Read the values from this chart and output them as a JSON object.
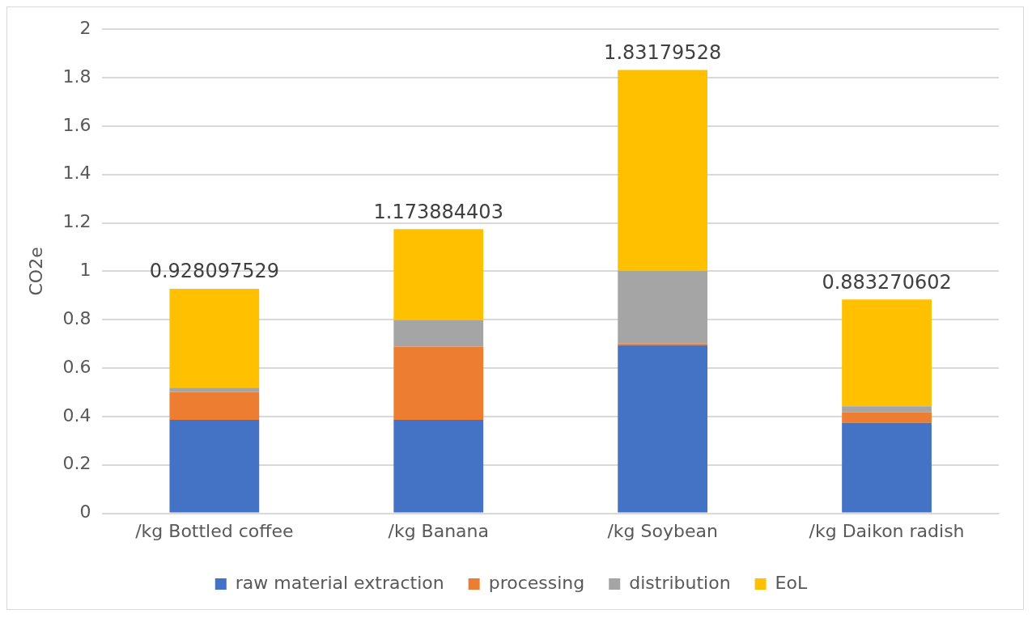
{
  "chart_data": {
    "type": "bar",
    "stacked": true,
    "ylabel": "CO2e",
    "categories": [
      "/kg Bottled coffee",
      "/kg Banana",
      "/kg Soybean",
      "/kg Daikon radish"
    ],
    "series": [
      {
        "name": "raw material extraction",
        "color": "#4472c4",
        "values": [
          0.386,
          0.386,
          0.695,
          0.374
        ]
      },
      {
        "name": "processing",
        "color": "#ed7d31",
        "values": [
          0.116,
          0.303,
          0.007,
          0.044
        ]
      },
      {
        "name": "distribution",
        "color": "#a5a5a5",
        "values": [
          0.017,
          0.109,
          0.3,
          0.024
        ]
      },
      {
        "name": "EoL",
        "color": "#ffc000",
        "values": [
          0.409097529,
          0.375884403,
          0.82979528,
          0.441270602
        ]
      }
    ],
    "totals": [
      "0.928097529",
      "1.173884403",
      "1.83179528",
      "0.883270602"
    ],
    "ylim": [
      0,
      2
    ],
    "yticks": [
      0,
      0.2,
      0.4,
      0.6,
      0.8,
      1,
      1.2,
      1.4,
      1.6,
      1.8,
      2
    ],
    "grid": "y",
    "legend": "bottom"
  }
}
